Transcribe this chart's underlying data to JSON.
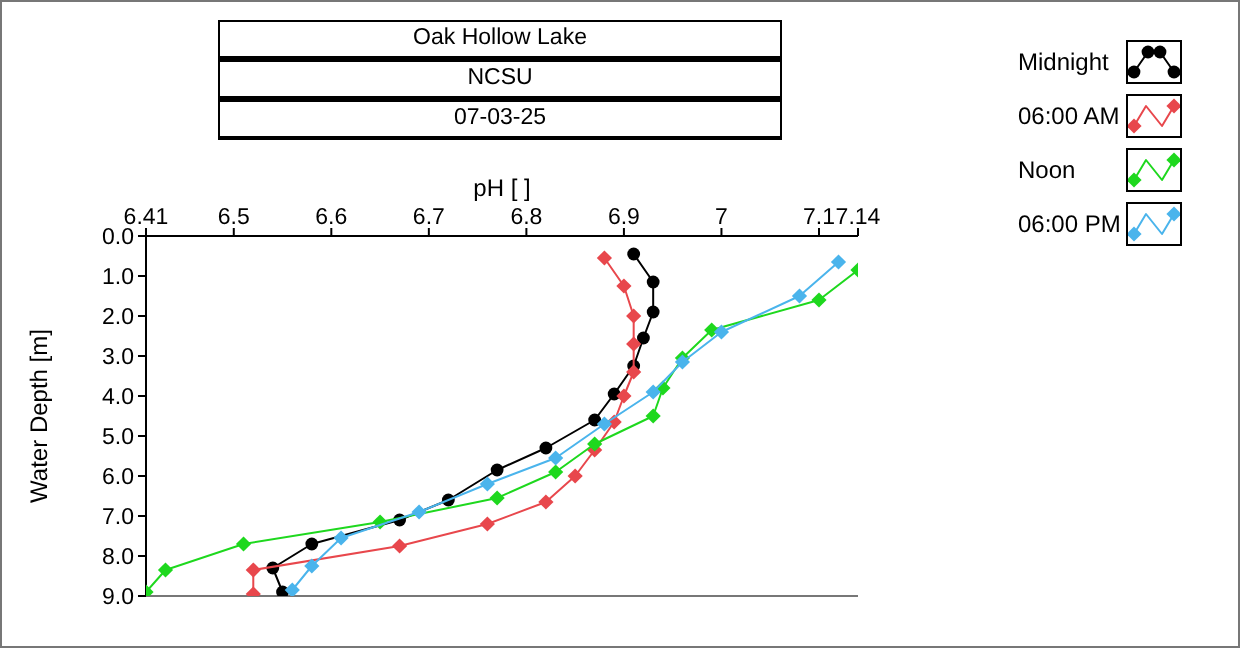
{
  "chart_data": {
    "type": "line",
    "title": "Oak Hollow Lake",
    "subtitle": "NCSU",
    "annotations": [
      "07-03-25"
    ],
    "xlabel": "pH [ ]",
    "ylabel": "Water Depth [m]",
    "xlim": [
      6.41,
      7.14
    ],
    "xticks": [
      6.41,
      6.5,
      6.6,
      6.7,
      6.8,
      6.9,
      7,
      7.1,
      7.14
    ],
    "ylim": [
      9,
      0
    ],
    "yticks": [
      {
        "value": 0,
        "label": "0.0"
      },
      {
        "value": 1,
        "label": "1.0"
      },
      {
        "value": 2,
        "label": "2.0"
      },
      {
        "value": 3,
        "label": "3.0"
      },
      {
        "value": 4,
        "label": "4.0"
      },
      {
        "value": 5,
        "label": "5.0"
      },
      {
        "value": 6,
        "label": "6.0"
      },
      {
        "value": 7,
        "label": "7.0"
      },
      {
        "value": 8,
        "label": "8.0"
      },
      {
        "value": 9,
        "label": "9.0"
      }
    ],
    "grid": false,
    "legend": "top right",
    "line_style": "solid",
    "series": [
      {
        "name": "Midnight",
        "color": "#000000",
        "marker": "circle",
        "x": [
          6.91,
          6.93,
          6.93,
          6.92,
          6.91,
          6.89,
          6.87,
          6.82,
          6.77,
          6.72,
          6.67,
          6.58,
          6.54,
          6.55
        ],
        "values": [
          0.45,
          1.15,
          1.9,
          2.55,
          3.25,
          3.95,
          4.6,
          5.3,
          5.85,
          6.6,
          7.1,
          7.7,
          8.3,
          8.9
        ]
      },
      {
        "name": "06:00 AM",
        "color": "#e8474c",
        "marker": "diamond",
        "x": [
          6.88,
          6.9,
          6.91,
          6.91,
          6.91,
          6.9,
          6.89,
          6.87,
          6.85,
          6.82,
          6.76,
          6.67,
          6.52,
          6.52
        ],
        "values": [
          0.55,
          1.25,
          2.0,
          2.7,
          3.4,
          4.0,
          4.65,
          5.35,
          6.0,
          6.65,
          7.2,
          7.75,
          8.35,
          8.95
        ]
      },
      {
        "name": "Noon",
        "color": "#1ed81e",
        "marker": "diamond",
        "x": [
          7.14,
          7.1,
          6.99,
          6.96,
          6.94,
          6.93,
          6.87,
          6.83,
          6.77,
          6.65,
          6.51,
          6.43,
          6.41
        ],
        "values": [
          0.85,
          1.6,
          2.35,
          3.05,
          3.8,
          4.5,
          5.2,
          5.9,
          6.55,
          7.15,
          7.7,
          8.35,
          8.9
        ]
      },
      {
        "name": "06:00 PM",
        "color": "#4ab4ec",
        "marker": "diamond",
        "x": [
          7.12,
          7.08,
          7.0,
          6.96,
          6.93,
          6.88,
          6.83,
          6.76,
          6.69,
          6.61,
          6.58,
          6.56
        ],
        "values": [
          0.65,
          1.5,
          2.4,
          3.15,
          3.9,
          4.7,
          5.55,
          6.2,
          6.9,
          7.55,
          8.25,
          8.85
        ]
      }
    ]
  }
}
